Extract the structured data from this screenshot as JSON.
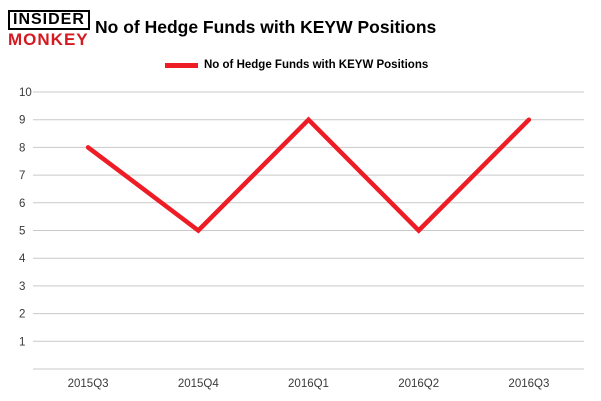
{
  "logo": {
    "line1": "INSIDER",
    "line2": "MONKEY"
  },
  "title": "No of Hedge Funds with KEYW Positions",
  "legend": {
    "label": "No of Hedge Funds with KEYW Positions",
    "color": "#ee1c25"
  },
  "chart_data": {
    "type": "line",
    "title": "No of Hedge Funds with KEYW Positions",
    "categories": [
      "2015Q3",
      "2015Q4",
      "2016Q1",
      "2016Q2",
      "2016Q3"
    ],
    "series": [
      {
        "name": "No of Hedge Funds with KEYW Positions",
        "values": [
          8,
          5,
          9,
          5,
          9
        ],
        "color": "#ee1c25"
      }
    ],
    "xlabel": "",
    "ylabel": "",
    "ylim": [
      0,
      10
    ],
    "yticks": [
      1,
      2,
      3,
      4,
      5,
      6,
      7,
      8,
      9,
      10
    ],
    "grid": true,
    "gridline_color": "#c9c9c9",
    "tick_label_color": "#3a3a3a",
    "legend_position": "top"
  }
}
